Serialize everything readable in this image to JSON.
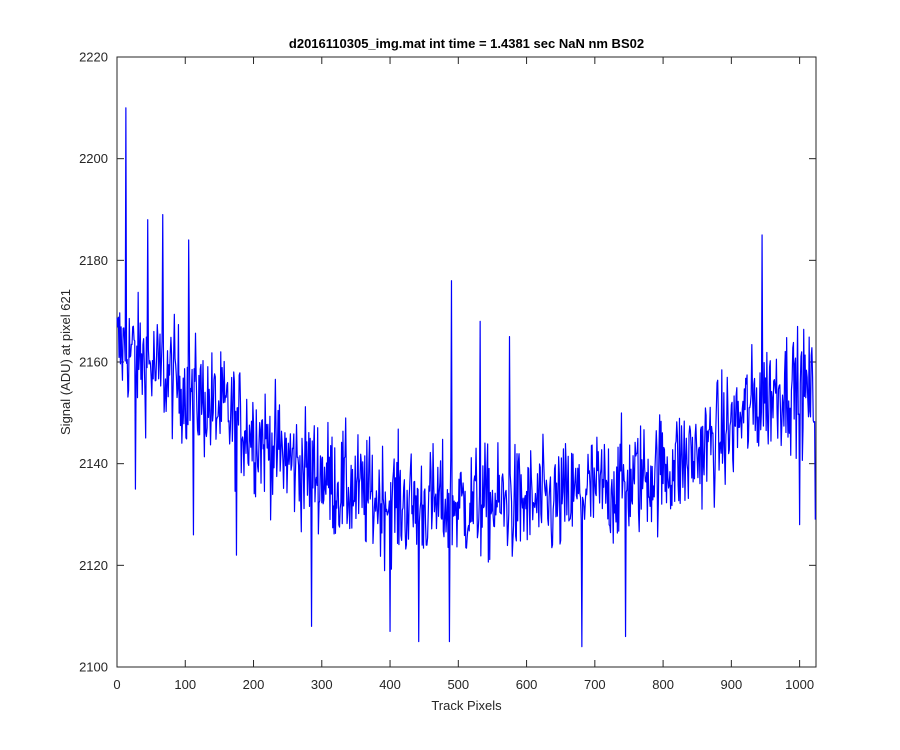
{
  "chart_data": {
    "type": "line",
    "title": "d2016110305_img.mat int time = 1.4381 sec  NaN nm BS02",
    "xlabel": "Track Pixels",
    "ylabel": "Signal (ADU) at pixel 621",
    "xlim": [
      0,
      1024
    ],
    "ylim": [
      2100,
      2220
    ],
    "xticks": [
      "0",
      "100",
      "200",
      "300",
      "400",
      "500",
      "600",
      "700",
      "800",
      "900",
      "1000"
    ],
    "yticks": [
      "2100",
      "2120",
      "2140",
      "2160",
      "2180",
      "2200",
      "2220"
    ],
    "grid": false,
    "series": [
      {
        "color": "#0000ff",
        "anchors": {
          "x": [
            0,
            20,
            40,
            60,
            80,
            100,
            120,
            140,
            160,
            180,
            200,
            220,
            240,
            260,
            280,
            300,
            320,
            340,
            360,
            380,
            400,
            420,
            440,
            460,
            480,
            500,
            520,
            540,
            560,
            580,
            600,
            620,
            640,
            660,
            680,
            700,
            720,
            740,
            760,
            780,
            800,
            820,
            840,
            860,
            880,
            900,
            920,
            940,
            960,
            980,
            1000,
            1024
          ],
          "y": [
            2163,
            2162,
            2160,
            2158,
            2157,
            2155,
            2153,
            2151,
            2150,
            2148,
            2146,
            2144,
            2142,
            2140,
            2139,
            2138,
            2136,
            2135,
            2134,
            2133,
            2133,
            2132,
            2132,
            2132,
            2132,
            2132,
            2132,
            2132,
            2132,
            2132,
            2132,
            2132,
            2132,
            2133,
            2134,
            2135,
            2135,
            2136,
            2137,
            2138,
            2139,
            2140,
            2141,
            2143,
            2145,
            2147,
            2150,
            2152,
            2154,
            2155,
            2155,
            2153
          ]
        },
        "noise_amplitude": 9,
        "spikes": [
          {
            "x": 13,
            "y": 2210
          },
          {
            "x": 27,
            "y": 2135
          },
          {
            "x": 45,
            "y": 2188
          },
          {
            "x": 67,
            "y": 2189
          },
          {
            "x": 105,
            "y": 2184
          },
          {
            "x": 112,
            "y": 2126
          },
          {
            "x": 175,
            "y": 2122
          },
          {
            "x": 285,
            "y": 2108
          },
          {
            "x": 400,
            "y": 2107
          },
          {
            "x": 442,
            "y": 2105
          },
          {
            "x": 487,
            "y": 2105
          },
          {
            "x": 490,
            "y": 2176
          },
          {
            "x": 532,
            "y": 2168
          },
          {
            "x": 575,
            "y": 2165
          },
          {
            "x": 681,
            "y": 2104
          },
          {
            "x": 745,
            "y": 2106
          },
          {
            "x": 945,
            "y": 2185
          },
          {
            "x": 1000,
            "y": 2128
          },
          {
            "x": 1023,
            "y": 2129
          }
        ],
        "point_count": 1024
      }
    ]
  }
}
